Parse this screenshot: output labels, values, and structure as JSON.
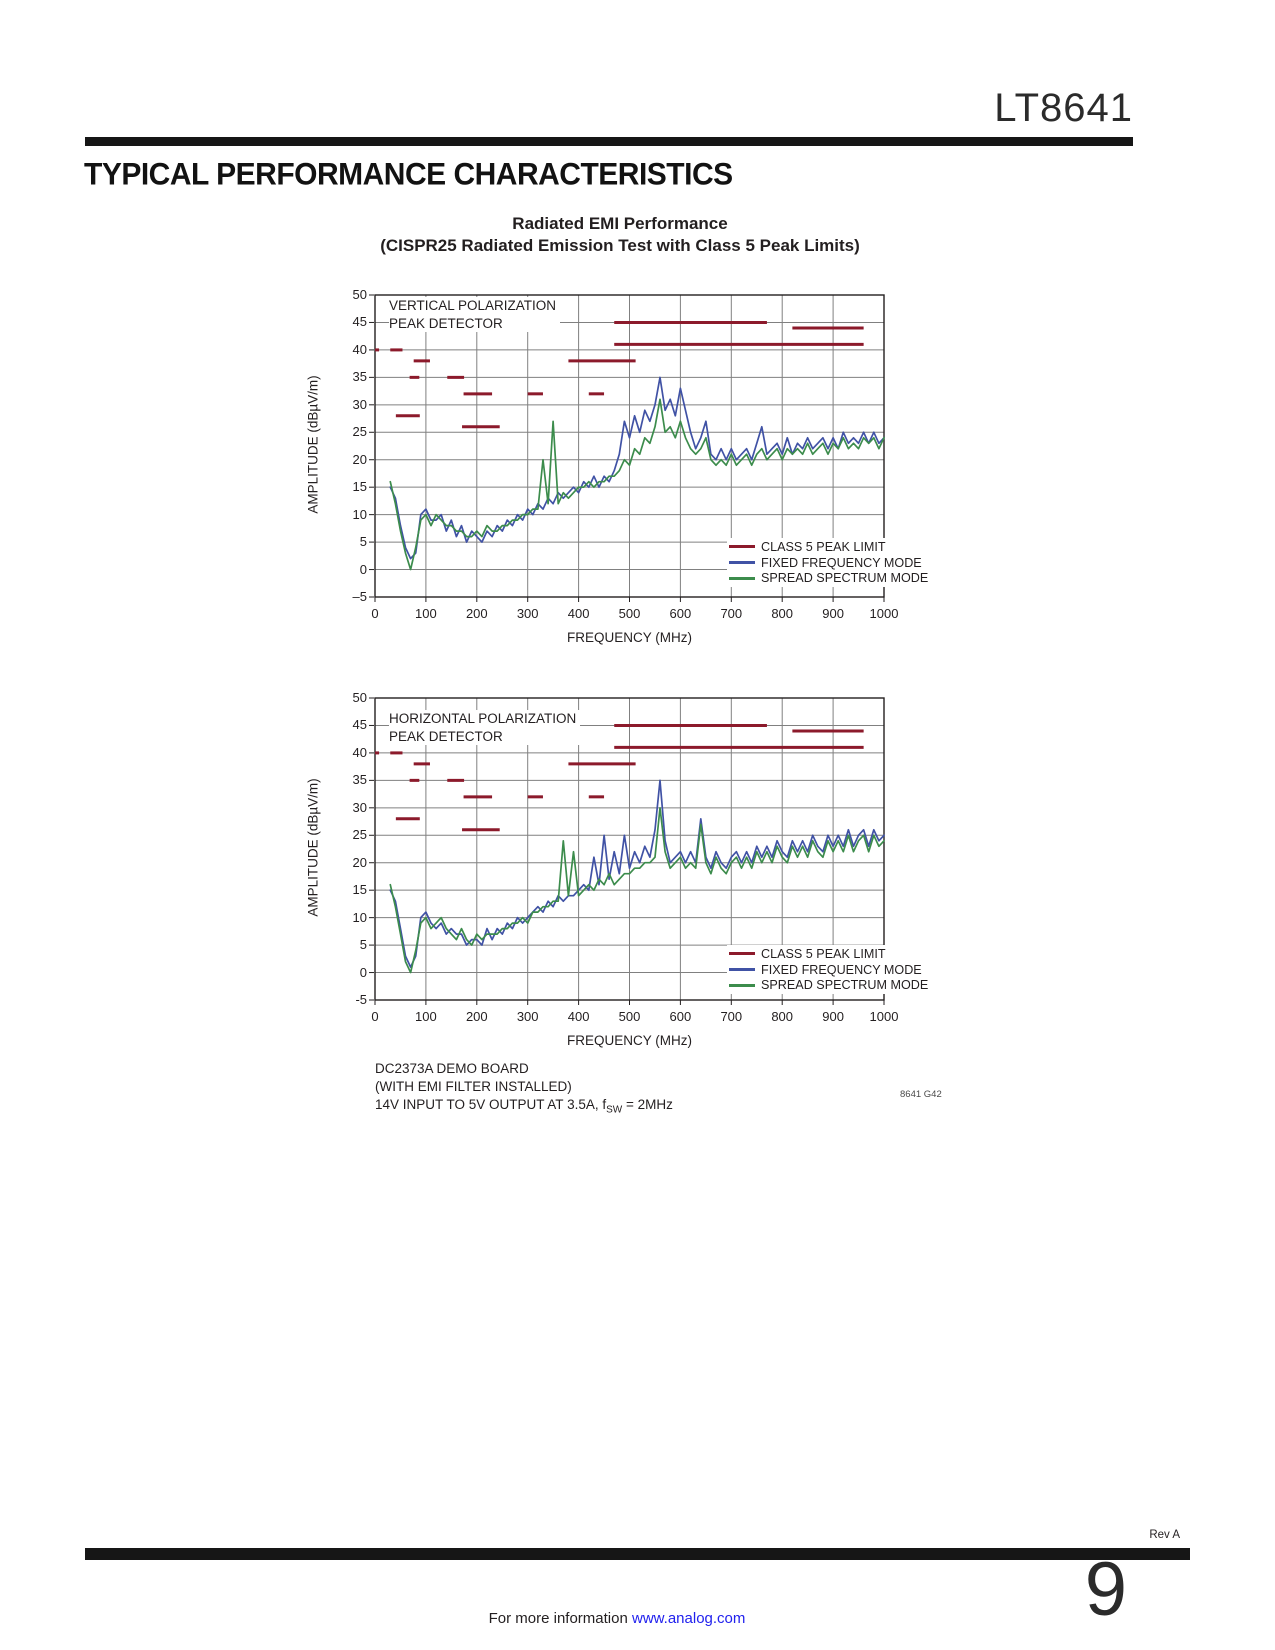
{
  "page": {
    "part_number": "LT8641",
    "section_title": "TYPICAL PERFORMANCE CHARACTERISTICS",
    "figure_title_line1": "Radiated EMI Performance",
    "figure_title_line2": "(CISPR25 Radiated Emission Test with Class 5 Peak Limits)",
    "notes": [
      "DC2373A DEMO BOARD",
      "(WITH EMI FILTER INSTALLED)"
    ],
    "note3": {
      "prefix": "14V INPUT TO 5V OUTPUT AT 3.5A, f",
      "sub": "SW",
      "suffix": " = 2MHz"
    },
    "graph_id": "8641 G42",
    "rev": "Rev A",
    "page_number": "9",
    "footer_text": "For more information ",
    "footer_link": "www.analog.com"
  },
  "colors": {
    "limit_red": "#8c1a2b",
    "fixed_blue": "#4052a5",
    "spread_green": "#3c8c4c",
    "grid_gray": "#808080",
    "axis_black": "#231f20",
    "link_blue": "#2121ee"
  },
  "chart_data": [
    {
      "type": "line",
      "annotation": [
        "VERTICAL POLARIZATION",
        "PEAK DETECTOR"
      ],
      "xlabel": "FREQUENCY (MHz)",
      "ylabel": "AMPLITUDE (dBµV/m)",
      "xlim": [
        0,
        1000
      ],
      "ylim": [
        -5,
        50
      ],
      "grid": true,
      "legend_position": "lower right",
      "x_ticks": [
        0,
        100,
        200,
        300,
        400,
        500,
        600,
        700,
        800,
        900,
        1000
      ],
      "x_tick_labels": [
        "0",
        "100",
        "200",
        "300",
        "400",
        "500",
        "600",
        "700",
        "800",
        "900",
        "1000"
      ],
      "y_ticks": [
        50,
        45,
        40,
        35,
        30,
        25,
        20,
        15,
        10,
        5,
        0,
        -5
      ],
      "y_tick_labels": [
        "50",
        "45",
        "40",
        "35",
        "30",
        "25",
        "20",
        "15",
        "10",
        "5",
        "0",
        "–5"
      ],
      "legend": [
        "CLASS 5 PEAK LIMIT",
        "FIXED FREQUENCY MODE",
        "SPREAD SPECTRUM MODE"
      ],
      "limit": {
        "name": "CLASS 5 PEAK LIMIT",
        "color": "#8c1a2b",
        "segments": [
          [
            0,
            8,
            40
          ],
          [
            30,
            54,
            40
          ],
          [
            41,
            88,
            28
          ],
          [
            68,
            87,
            35
          ],
          [
            76,
            108,
            38
          ],
          [
            142,
            175,
            35
          ],
          [
            174,
            230,
            32
          ],
          [
            171,
            245,
            26
          ],
          [
            300,
            330,
            32
          ],
          [
            380,
            512,
            38
          ],
          [
            420,
            450,
            32
          ],
          [
            470,
            770,
            45
          ],
          [
            470,
            960,
            41
          ],
          [
            820,
            960,
            44
          ]
        ]
      },
      "x": [
        30,
        40,
        50,
        60,
        70,
        80,
        90,
        100,
        110,
        120,
        130,
        140,
        150,
        160,
        170,
        180,
        190,
        200,
        210,
        220,
        230,
        240,
        250,
        260,
        270,
        280,
        290,
        300,
        310,
        320,
        330,
        340,
        350,
        360,
        370,
        380,
        390,
        400,
        410,
        420,
        430,
        440,
        450,
        460,
        470,
        480,
        490,
        500,
        510,
        520,
        530,
        540,
        550,
        560,
        570,
        580,
        590,
        600,
        610,
        620,
        630,
        640,
        650,
        660,
        670,
        680,
        690,
        700,
        710,
        720,
        730,
        740,
        750,
        760,
        770,
        780,
        790,
        800,
        810,
        820,
        830,
        840,
        850,
        860,
        870,
        880,
        890,
        900,
        910,
        920,
        930,
        940,
        950,
        960,
        970,
        980,
        990,
        1000
      ],
      "series": [
        {
          "name": "FIXED FREQUENCY MODE",
          "color": "#4052a5",
          "values": [
            15,
            13,
            8,
            4,
            2,
            3,
            10,
            11,
            9,
            9,
            10,
            7,
            9,
            6,
            8,
            5,
            7,
            6,
            5,
            7,
            6,
            8,
            7,
            9,
            8,
            10,
            9,
            11,
            10,
            12,
            11,
            13,
            12,
            14,
            13,
            14,
            15,
            14,
            16,
            15,
            17,
            15,
            17,
            16,
            18,
            21,
            27,
            24,
            28,
            25,
            29,
            27,
            30,
            35,
            29,
            31,
            28,
            33,
            29,
            25,
            22,
            24,
            27,
            21,
            20,
            22,
            20,
            22,
            20,
            21,
            22,
            20,
            23,
            26,
            21,
            22,
            23,
            21,
            24,
            21,
            23,
            22,
            24,
            22,
            23,
            24,
            22,
            24,
            22,
            25,
            23,
            24,
            23,
            25,
            23,
            25,
            23,
            24
          ]
        },
        {
          "name": "SPREAD SPECTRUM MODE",
          "color": "#3c8c4c",
          "values": [
            16,
            12,
            7,
            3,
            0,
            4,
            9,
            10,
            8,
            10,
            9,
            8,
            8,
            7,
            7,
            6,
            6,
            7,
            6,
            8,
            7,
            7,
            8,
            8,
            9,
            9,
            10,
            10,
            11,
            11,
            20,
            12,
            27,
            12,
            14,
            13,
            14,
            15,
            15,
            16,
            15,
            16,
            16,
            17,
            17,
            18,
            20,
            19,
            22,
            21,
            24,
            23,
            26,
            31,
            25,
            26,
            24,
            27,
            24,
            22,
            21,
            22,
            24,
            20,
            19,
            20,
            19,
            21,
            19,
            20,
            21,
            19,
            21,
            22,
            20,
            21,
            22,
            20,
            22,
            21,
            22,
            21,
            23,
            21,
            22,
            23,
            21,
            23,
            22,
            24,
            22,
            23,
            22,
            24,
            23,
            24,
            22,
            24
          ]
        }
      ]
    },
    {
      "type": "line",
      "annotation": [
        "HORIZONTAL POLARIZATION",
        "PEAK DETECTOR"
      ],
      "xlabel": "FREQUENCY (MHz)",
      "ylabel": "AMPLITUDE (dBµV/m)",
      "xlim": [
        0,
        1000
      ],
      "ylim": [
        -5,
        50
      ],
      "grid": true,
      "legend_position": "lower right",
      "x_ticks": [
        0,
        100,
        200,
        300,
        400,
        500,
        600,
        700,
        800,
        900,
        1000
      ],
      "x_tick_labels": [
        "0",
        "100",
        "200",
        "300",
        "400",
        "500",
        "600",
        "700",
        "800",
        "900",
        "1000"
      ],
      "y_ticks": [
        50,
        45,
        40,
        35,
        30,
        25,
        20,
        15,
        10,
        5,
        0,
        -5
      ],
      "y_tick_labels": [
        "50",
        "45",
        "40",
        "35",
        "30",
        "25",
        "20",
        "15",
        "10",
        "5",
        "0",
        "-5"
      ],
      "legend": [
        "CLASS 5 PEAK LIMIT",
        "FIXED FREQUENCY MODE",
        "SPREAD SPECTRUM MODE"
      ],
      "limit": {
        "name": "CLASS 5 PEAK LIMIT",
        "color": "#8c1a2b",
        "segments": [
          [
            0,
            8,
            40
          ],
          [
            30,
            54,
            40
          ],
          [
            41,
            88,
            28
          ],
          [
            68,
            87,
            35
          ],
          [
            76,
            108,
            38
          ],
          [
            142,
            175,
            35
          ],
          [
            174,
            230,
            32
          ],
          [
            171,
            245,
            26
          ],
          [
            300,
            330,
            32
          ],
          [
            380,
            512,
            38
          ],
          [
            420,
            450,
            32
          ],
          [
            470,
            770,
            45
          ],
          [
            470,
            960,
            41
          ],
          [
            820,
            960,
            44
          ]
        ]
      },
      "x": [
        30,
        40,
        50,
        60,
        70,
        80,
        90,
        100,
        110,
        120,
        130,
        140,
        150,
        160,
        170,
        180,
        190,
        200,
        210,
        220,
        230,
        240,
        250,
        260,
        270,
        280,
        290,
        300,
        310,
        320,
        330,
        340,
        350,
        360,
        370,
        380,
        390,
        400,
        410,
        420,
        430,
        440,
        450,
        460,
        470,
        480,
        490,
        500,
        510,
        520,
        530,
        540,
        550,
        560,
        570,
        580,
        590,
        600,
        610,
        620,
        630,
        640,
        650,
        660,
        670,
        680,
        690,
        700,
        710,
        720,
        730,
        740,
        750,
        760,
        770,
        780,
        790,
        800,
        810,
        820,
        830,
        840,
        850,
        860,
        870,
        880,
        890,
        900,
        910,
        920,
        930,
        940,
        950,
        960,
        970,
        980,
        990,
        1000
      ],
      "series": [
        {
          "name": "FIXED FREQUENCY MODE",
          "color": "#4052a5",
          "values": [
            15,
            13,
            8,
            3,
            1,
            3,
            10,
            11,
            9,
            8,
            9,
            7,
            8,
            7,
            7,
            5,
            6,
            6,
            5,
            8,
            6,
            8,
            7,
            9,
            8,
            10,
            9,
            10,
            11,
            12,
            11,
            13,
            12,
            14,
            13,
            14,
            14,
            15,
            16,
            15,
            21,
            16,
            25,
            17,
            22,
            18,
            25,
            19,
            22,
            20,
            23,
            21,
            26,
            35,
            24,
            20,
            21,
            22,
            20,
            22,
            20,
            28,
            21,
            19,
            22,
            20,
            19,
            21,
            22,
            20,
            22,
            20,
            23,
            21,
            23,
            21,
            24,
            22,
            21,
            24,
            22,
            24,
            22,
            25,
            23,
            22,
            25,
            23,
            25,
            23,
            26,
            23,
            25,
            26,
            23,
            26,
            24,
            25
          ]
        },
        {
          "name": "SPREAD SPECTRUM MODE",
          "color": "#3c8c4c",
          "values": [
            16,
            12,
            7,
            2,
            0,
            4,
            9,
            10,
            8,
            9,
            10,
            8,
            7,
            6,
            8,
            6,
            5,
            7,
            6,
            7,
            7,
            7,
            8,
            8,
            9,
            9,
            10,
            9,
            11,
            11,
            12,
            12,
            13,
            13,
            24,
            14,
            22,
            14,
            15,
            16,
            15,
            17,
            16,
            18,
            16,
            17,
            18,
            18,
            19,
            19,
            20,
            20,
            21,
            30,
            22,
            19,
            20,
            21,
            19,
            20,
            19,
            27,
            20,
            18,
            21,
            19,
            18,
            20,
            21,
            19,
            21,
            19,
            22,
            20,
            22,
            20,
            23,
            21,
            20,
            23,
            21,
            23,
            21,
            24,
            22,
            21,
            24,
            22,
            24,
            22,
            25,
            22,
            24,
            25,
            22,
            25,
            23,
            24
          ]
        }
      ]
    }
  ]
}
